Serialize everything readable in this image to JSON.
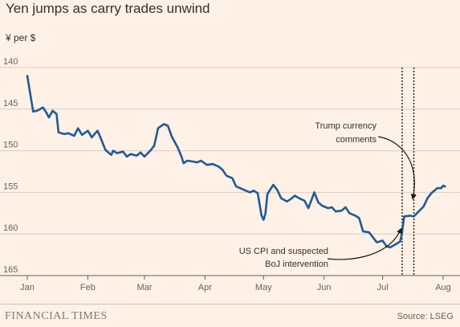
{
  "title": "Yen jumps as carry trades unwind",
  "unit_label": "¥ per $",
  "brand": "FINANCIAL TIMES",
  "source": "Source: LSEG",
  "chart_data": {
    "type": "line",
    "title": "Yen jumps as carry trades unwind",
    "ylabel": "¥ per $",
    "y_inverted": true,
    "ylim": [
      140,
      165
    ],
    "y_ticks": [
      140,
      145,
      150,
      155,
      160,
      165
    ],
    "y_tick_labels": [
      "140",
      "145",
      "150",
      "155",
      "160",
      "165"
    ],
    "x_ticks": [
      "2024-01-01",
      "2024-02-01",
      "2024-03-01",
      "2024-04-01",
      "2024-05-01",
      "2024-06-01",
      "2024-07-01",
      "2024-08-01"
    ],
    "x_tick_labels": [
      "Jan",
      "Feb",
      "Mar",
      "Apr",
      "May",
      "Jun",
      "Jul",
      "Aug"
    ],
    "grid": true,
    "line_color": "#1f5a99",
    "series": [
      {
        "x": [
          "2024-01-01",
          "2024-01-04",
          "2024-01-06",
          "2024-01-09",
          "2024-01-11",
          "2024-01-12",
          "2024-01-14",
          "2024-01-16",
          "2024-01-17",
          "2024-01-20",
          "2024-01-22",
          "2024-01-25",
          "2024-01-27",
          "2024-01-29",
          "2024-02-01",
          "2024-02-03",
          "2024-02-06",
          "2024-02-08",
          "2024-02-10",
          "2024-02-13",
          "2024-02-14",
          "2024-02-16",
          "2024-02-19",
          "2024-02-21",
          "2024-02-23",
          "2024-02-26",
          "2024-02-28",
          "2024-03-01",
          "2024-03-04",
          "2024-03-06",
          "2024-03-08",
          "2024-03-11",
          "2024-03-13",
          "2024-03-15",
          "2024-03-18",
          "2024-03-20",
          "2024-03-21",
          "2024-03-23",
          "2024-03-26",
          "2024-03-28",
          "2024-03-30",
          "2024-04-02",
          "2024-04-05",
          "2024-04-08",
          "2024-04-10",
          "2024-04-12",
          "2024-04-15",
          "2024-04-17",
          "2024-04-19",
          "2024-04-22",
          "2024-04-24",
          "2024-04-26",
          "2024-04-28",
          "2024-04-30",
          "2024-05-01",
          "2024-05-02",
          "2024-05-03",
          "2024-05-06",
          "2024-05-08",
          "2024-05-10",
          "2024-05-13",
          "2024-05-15",
          "2024-05-17",
          "2024-05-20",
          "2024-05-22",
          "2024-05-24",
          "2024-05-27",
          "2024-05-29",
          "2024-05-31",
          "2024-06-03",
          "2024-06-05",
          "2024-06-07",
          "2024-06-10",
          "2024-06-12",
          "2024-06-14",
          "2024-06-17",
          "2024-06-19",
          "2024-06-21",
          "2024-06-24",
          "2024-06-26",
          "2024-06-28",
          "2024-07-01",
          "2024-07-03",
          "2024-07-05",
          "2024-07-08",
          "2024-07-10",
          "2024-07-11",
          "2024-07-12",
          "2024-07-15",
          "2024-07-17",
          "2024-07-19",
          "2024-07-22",
          "2024-07-24",
          "2024-07-26",
          "2024-07-29",
          "2024-07-31",
          "2024-08-01",
          "2024-08-02"
        ],
        "y": [
          141,
          145.3,
          145.2,
          144.8,
          145.5,
          146,
          145.2,
          145.6,
          147.8,
          148,
          147.9,
          148.2,
          147.3,
          148.1,
          147.6,
          148.4,
          147.6,
          148.7,
          149.9,
          150.5,
          150,
          150.3,
          150.1,
          150.7,
          150.4,
          150.6,
          150.2,
          150.7,
          150,
          149.4,
          147.3,
          146.8,
          147,
          148.3,
          149.6,
          150.7,
          151.5,
          151.2,
          151.3,
          151.4,
          151.2,
          151.7,
          151.6,
          151.9,
          152.3,
          153,
          153.3,
          154.3,
          154.5,
          154.8,
          155,
          154.8,
          155.1,
          157.8,
          158.3,
          157.5,
          155.2,
          154.1,
          154.7,
          155.7,
          156.1,
          155.8,
          155.4,
          155.8,
          156,
          156.9,
          155,
          156.2,
          156.6,
          156.9,
          156.8,
          157.3,
          157.2,
          156.8,
          157.5,
          157.8,
          158.1,
          159.7,
          159.8,
          160.4,
          161,
          160.8,
          161.5,
          161.6,
          161.2,
          160.9,
          159.8,
          157.9,
          157.8,
          157.9,
          157.4,
          156.7,
          155.7,
          155.1,
          154.5,
          154.5,
          154.2,
          154.3
        ]
      }
    ],
    "markers": [
      {
        "x": "2024-07-11",
        "style": "dotted"
      },
      {
        "x": "2024-07-17",
        "style": "dotted"
      }
    ],
    "annotations": [
      {
        "lines": [
          "Trump currency",
          "comments"
        ],
        "points_to": "2024-07-17"
      },
      {
        "lines": [
          "US CPI and suspected",
          "BoJ intervention"
        ],
        "points_to": "2024-07-11"
      }
    ]
  }
}
